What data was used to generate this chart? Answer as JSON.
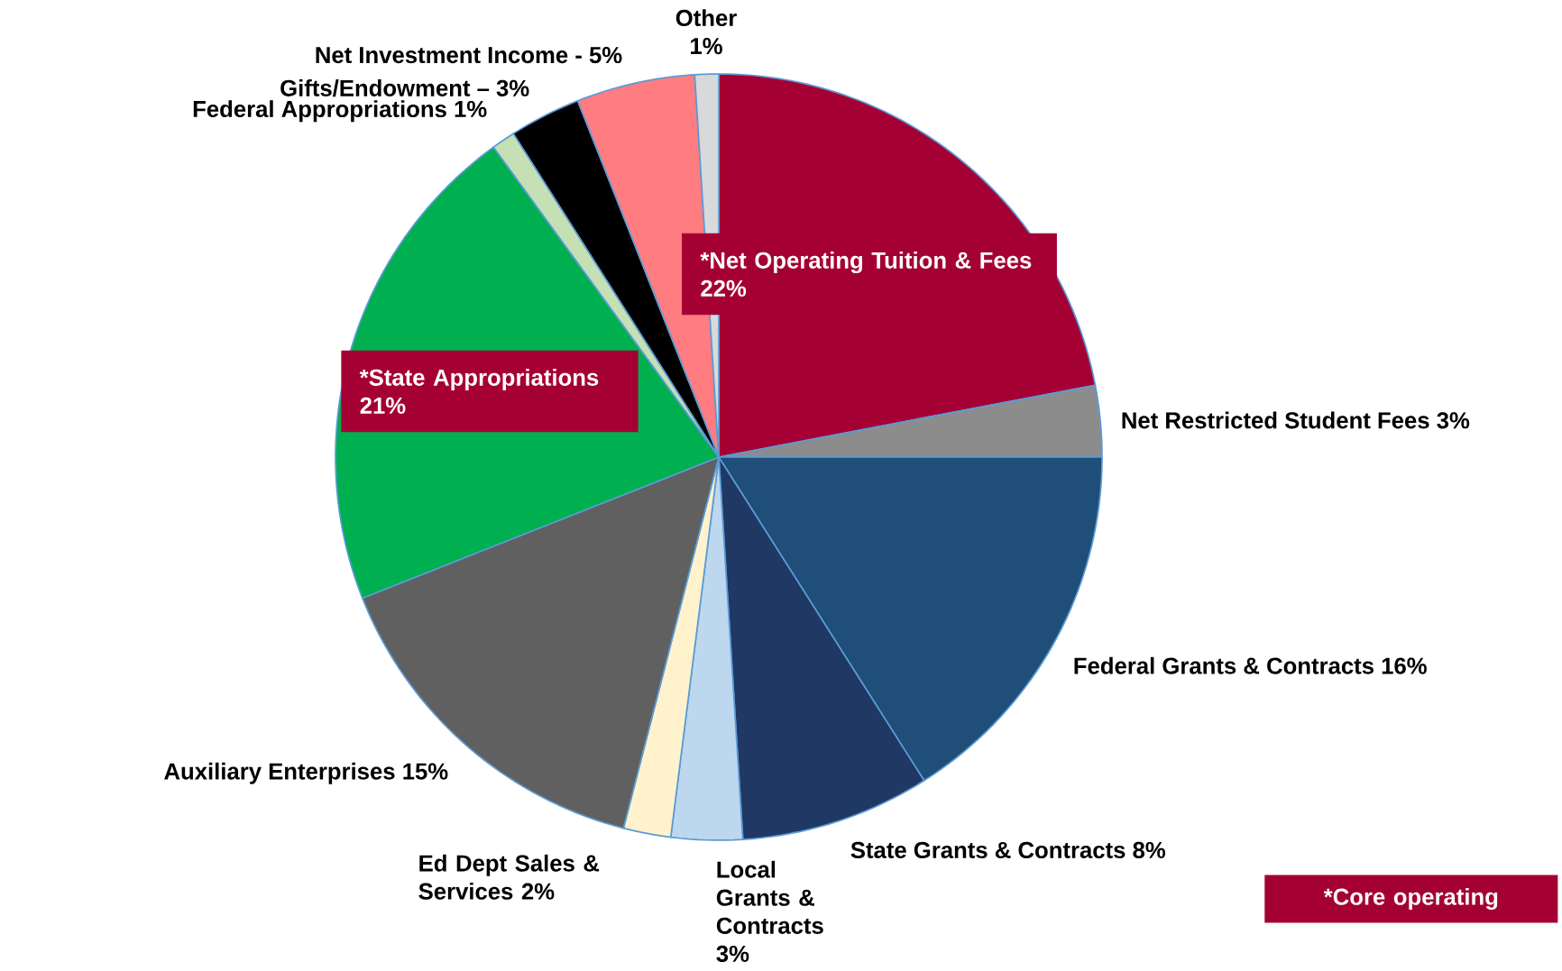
{
  "chart_data": {
    "type": "pie",
    "categories": [
      "*Net Operating Tuition & Fees 22%",
      "Net Restricted Student Fees 3%",
      "Federal Grants & Contracts 16%",
      "State Grants & Contracts 8%",
      "Local Grants & Contracts 3%",
      "Ed Dept Sales & Services 2%",
      "Auxiliary Enterprises 15%",
      "*State Appropriations 21%",
      "Federal Appropriations 1%",
      "Gifts/Endowment – 3%",
      "Net Investment Income - 5%",
      "Other 1%"
    ],
    "values": [
      22,
      3,
      16,
      8,
      3,
      2,
      15,
      21,
      1,
      3,
      5,
      1
    ],
    "colors": [
      "#a50034",
      "#8c8c8c",
      "#1f4e79",
      "#203864",
      "#bdd7ee",
      "#fff2cc",
      "#606060",
      "#00b050",
      "#c5e0b4",
      "#000000",
      "#ff7c80",
      "#d9d9d9"
    ],
    "annotations": [
      "*Core operating"
    ]
  }
}
